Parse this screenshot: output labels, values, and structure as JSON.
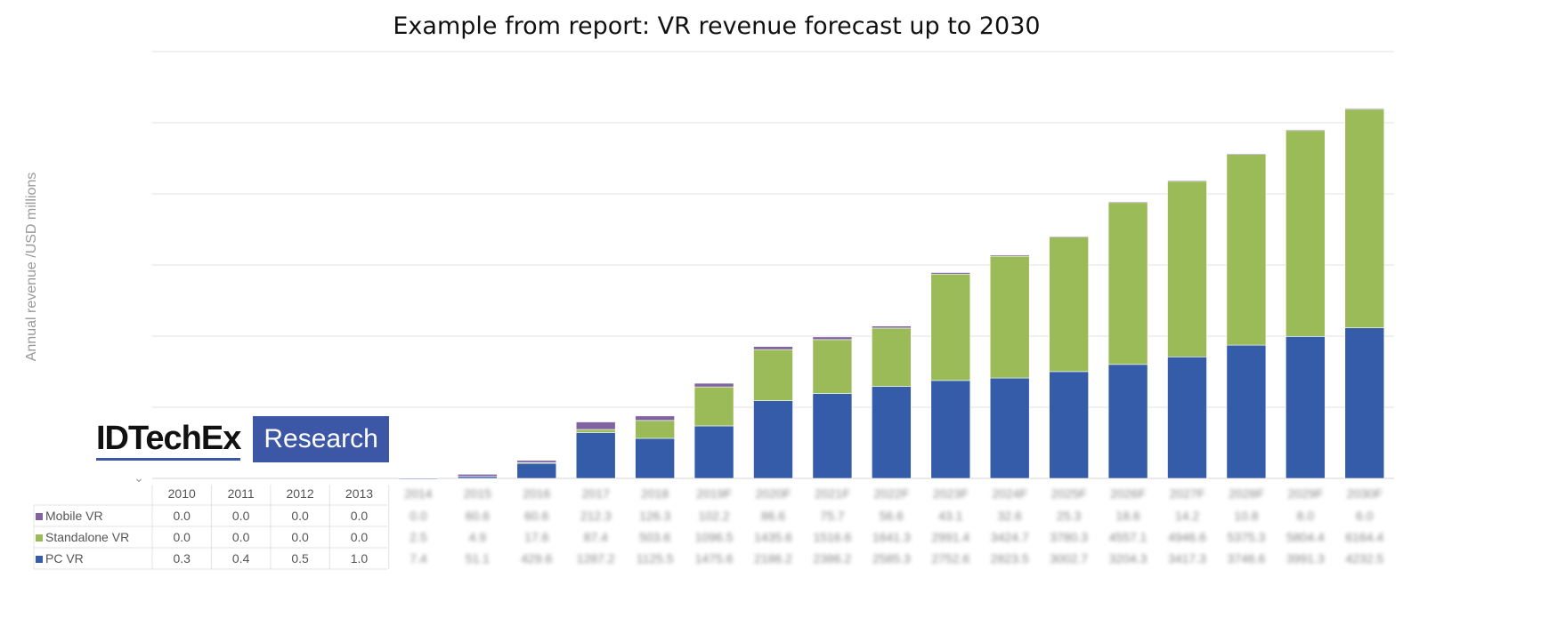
{
  "chart_data": {
    "type": "bar",
    "stacked": true,
    "title": "Example from report: VR revenue forecast up to 2030",
    "xlabel": "",
    "ylabel": "Annual revenue /USD millions",
    "ylim": [
      0,
      12000
    ],
    "grid": true,
    "categories": [
      "2010",
      "2011",
      "2012",
      "2013",
      "2014",
      "2015",
      "2016",
      "2017",
      "2018",
      "2019F",
      "2020F",
      "2021F",
      "2022F",
      "2023F",
      "2024F",
      "2025F",
      "2026F",
      "2027F",
      "2028F",
      "2029F",
      "2030F"
    ],
    "series": [
      {
        "name": "PC VR",
        "color": "#355ca8",
        "values": [
          0.3,
          0.4,
          0.5,
          1.0,
          7.4,
          51.1,
          429.6,
          1287.2,
          1125.5,
          1475.6,
          2186.2,
          2386.2,
          2585.3,
          2752.6,
          2823.5,
          3002.7,
          3204.3,
          3417.3,
          3746.6,
          3991.3,
          4232.5
        ]
      },
      {
        "name": "Standalone VR",
        "color": "#9bbb59",
        "values": [
          0.0,
          0.0,
          0.0,
          0.0,
          2.5,
          4.9,
          17.6,
          87.4,
          503.6,
          1096.5,
          1435.6,
          1516.6,
          1641.3,
          2991.4,
          3424.7,
          3780.3,
          4557.1,
          4946.6,
          5375.3,
          5804.4,
          6164.4
        ]
      },
      {
        "name": "Mobile VR",
        "color": "#8064a2",
        "values": [
          0.0,
          0.0,
          0.0,
          0.0,
          0.0,
          60.6,
          60.6,
          212.3,
          126.3,
          102.2,
          86.6,
          75.7,
          56.6,
          43.1,
          32.6,
          25.3,
          18.6,
          14.2,
          10.8,
          8.0,
          6.0
        ]
      }
    ],
    "legend": "table-bottom"
  },
  "logo": {
    "name": "IDTechEx",
    "tag": "Research"
  }
}
